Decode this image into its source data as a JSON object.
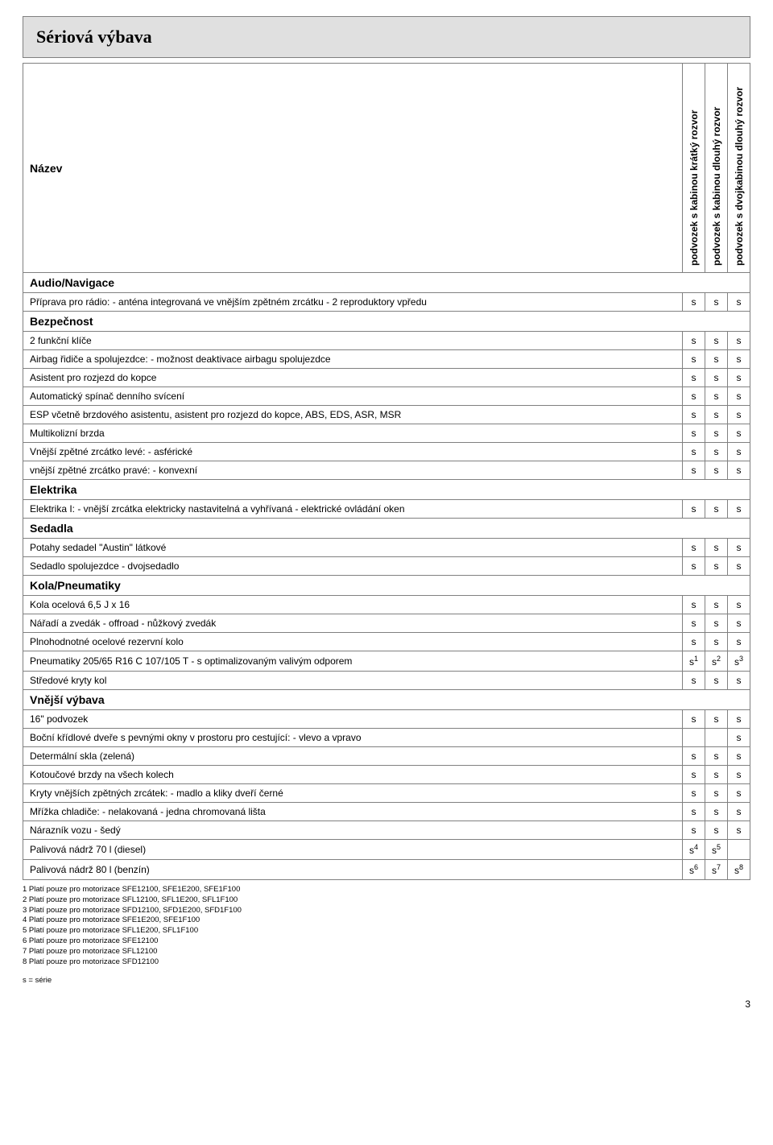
{
  "title": "Sériová výbava",
  "header": {
    "name_label": "Název",
    "columns": [
      "podvozek s kabinou krátký rozvor",
      "podvozek s kabinou dlouhý rozvor",
      "podvozek s dvojkabinou dlouhý rozvor"
    ]
  },
  "sections": [
    {
      "title": "Audio/Navigace",
      "rows": [
        {
          "label": "Příprava pro rádio: - anténa integrovaná ve vnějším zpětném zrcátku - 2 reproduktory vpředu",
          "v": [
            "s",
            "s",
            "s"
          ]
        }
      ]
    },
    {
      "title": "Bezpečnost",
      "rows": [
        {
          "label": "2 funkční klíče",
          "v": [
            "s",
            "s",
            "s"
          ]
        },
        {
          "label": "Airbag řidiče a spolujezdce: - možnost deaktivace airbagu spolujezdce",
          "v": [
            "s",
            "s",
            "s"
          ]
        },
        {
          "label": "Asistent pro rozjezd do kopce",
          "v": [
            "s",
            "s",
            "s"
          ]
        },
        {
          "label": "Automatický spínač denního svícení",
          "v": [
            "s",
            "s",
            "s"
          ]
        },
        {
          "label": "ESP včetně brzdového asistentu, asistent pro rozjezd do kopce, ABS, EDS, ASR, MSR",
          "v": [
            "s",
            "s",
            "s"
          ]
        },
        {
          "label": "Multikolizní brzda",
          "v": [
            "s",
            "s",
            "s"
          ]
        },
        {
          "label": "Vnější zpětné zrcátko levé: - asférické",
          "v": [
            "s",
            "s",
            "s"
          ]
        },
        {
          "label": "vnější zpětné zrcátko pravé: - konvexní",
          "v": [
            "s",
            "s",
            "s"
          ]
        }
      ]
    },
    {
      "title": "Elektrika",
      "rows": [
        {
          "label": "Elektrika I: - vnější zrcátka elektricky nastavitelná a vyhřívaná - elektrické ovládání oken",
          "v": [
            "s",
            "s",
            "s"
          ]
        }
      ]
    },
    {
      "title": "Sedadla",
      "rows": [
        {
          "label": "Potahy sedadel \"Austin\" látkové",
          "v": [
            "s",
            "s",
            "s"
          ]
        },
        {
          "label": "Sedadlo spolujezdce - dvojsedadlo",
          "v": [
            "s",
            "s",
            "s"
          ]
        }
      ]
    },
    {
      "title": "Kola/Pneumatiky",
      "rows": [
        {
          "label": "Kola ocelová 6,5 J x 16",
          "v": [
            "s",
            "s",
            "s"
          ]
        },
        {
          "label": "Nářadí a zvedák - offroad - nůžkový zvedák",
          "v": [
            "s",
            "s",
            "s"
          ]
        },
        {
          "label": "Plnohodnotné ocelové rezervní kolo",
          "v": [
            "s",
            "s",
            "s"
          ]
        },
        {
          "label": "Pneumatiky 205/65 R16 C 107/105 T - s optimalizovaným valivým odporem",
          "v": [
            "s",
            "s",
            "s"
          ],
          "sup": [
            "1",
            "2",
            "3"
          ]
        },
        {
          "label": "Středové kryty kol",
          "v": [
            "s",
            "s",
            "s"
          ]
        }
      ]
    },
    {
      "title": "Vnější výbava",
      "rows": [
        {
          "label": "16\" podvozek",
          "v": [
            "s",
            "s",
            "s"
          ]
        },
        {
          "label": "Boční křídlové dveře s pevnými okny v prostoru pro cestující: - vlevo a vpravo",
          "v": [
            "",
            "",
            "s"
          ]
        },
        {
          "label": "Determální skla (zelená)",
          "v": [
            "s",
            "s",
            "s"
          ]
        },
        {
          "label": "Kotoučové brzdy na všech kolech",
          "v": [
            "s",
            "s",
            "s"
          ]
        },
        {
          "label": "Kryty vnějších zpětných zrcátek: - madlo a kliky dveří černé",
          "v": [
            "s",
            "s",
            "s"
          ]
        },
        {
          "label": "Mřížka chladiče: - nelakovaná - jedna chromovaná lišta",
          "v": [
            "s",
            "s",
            "s"
          ]
        },
        {
          "label": "Nárazník vozu - šedý",
          "v": [
            "s",
            "s",
            "s"
          ]
        },
        {
          "label": "Palivová nádrž 70 l (diesel)",
          "v": [
            "s",
            "s",
            ""
          ],
          "sup": [
            "4",
            "5",
            ""
          ]
        },
        {
          "label": "Palivová nádrž 80 l (benzín)",
          "v": [
            "s",
            "s",
            "s"
          ],
          "sup": [
            "6",
            "7",
            "8"
          ]
        }
      ]
    }
  ],
  "footnotes": [
    "1 Platí pouze pro motorizace SFE12100, SFE1E200, SFE1F100",
    "2 Platí pouze pro motorizace SFL12100, SFL1E200, SFL1F100",
    "3 Platí pouze pro motorizace SFD12100, SFD1E200, SFD1F100",
    "4 Platí pouze pro motorizace SFE1E200, SFE1F100",
    "5 Platí pouze pro motorizace SFL1E200, SFL1F100",
    "6 Platí pouze pro motorizace SFE12100",
    "7 Platí pouze pro motorizace SFL12100",
    "8 Platí pouze pro motorizace SFD12100"
  ],
  "legend": "s = série",
  "page_number": "3"
}
